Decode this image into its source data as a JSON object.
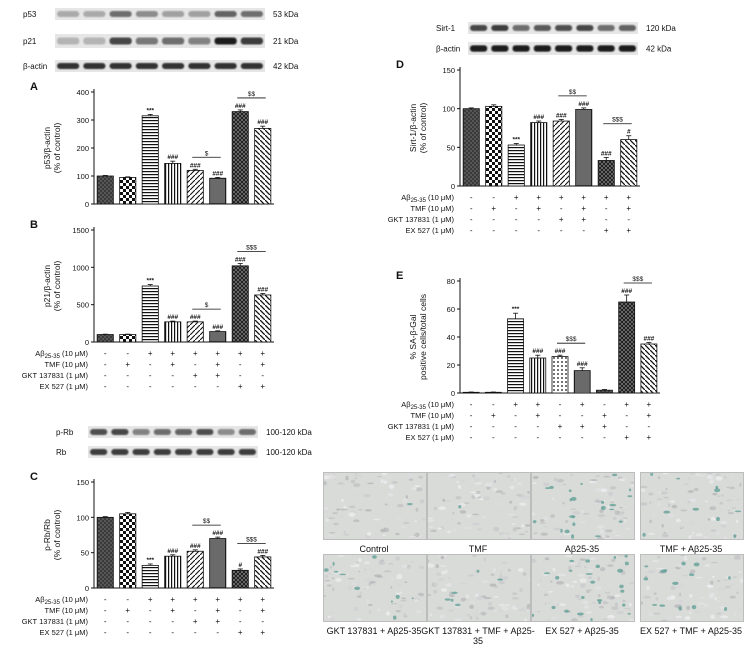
{
  "blots": {
    "top_left": [
      {
        "name": "p53",
        "size": "53 kDa"
      },
      {
        "name": "p21",
        "size": "21 kDa"
      },
      {
        "name": "β-actin",
        "size": "42 kDa"
      }
    ],
    "top_right": [
      {
        "name": "Sirt-1",
        "size": "120 kDa"
      },
      {
        "name": "β-actin",
        "size": "42 kDa"
      }
    ],
    "middle_left": [
      {
        "name": "p-Rb",
        "size": "100-120 kDa"
      },
      {
        "name": "Rb",
        "size": "100-120 kDa"
      }
    ]
  },
  "treatments": {
    "rows": [
      "Aβ25-35 (10 μM)",
      "TMF (10 μM)",
      "GKT 137831 (1 μM)",
      "EX 527 (1 μM)"
    ],
    "signs": [
      [
        "-",
        "-",
        "+",
        "+",
        "+",
        "+",
        "+",
        "+"
      ],
      [
        "-",
        "+",
        "-",
        "+",
        "-",
        "+",
        "-",
        "+"
      ],
      [
        "-",
        "-",
        "-",
        "-",
        "+",
        "+",
        "-",
        "-"
      ],
      [
        "-",
        "-",
        "-",
        "-",
        "-",
        "-",
        "+",
        "+"
      ]
    ]
  },
  "images": {
    "labels": [
      "Control",
      "TMF",
      "Aβ25-35",
      "TMF + Aβ25-35",
      "GKT 137831 + Aβ25-35",
      "GKT 137831 + TMF + Aβ25-35",
      "EX 527 + Aβ25-35",
      "EX 527 + TMF + Aβ25-35"
    ]
  },
  "chart_data": [
    {
      "panel": "A",
      "type": "bar",
      "ylabel": "p53/β-actin (% of control)",
      "ylim": [
        0,
        400
      ],
      "yticks": [
        0,
        100,
        200,
        300,
        400
      ],
      "values": [
        100,
        95,
        315,
        145,
        120,
        92,
        330,
        270
      ],
      "errors": [
        2,
        2,
        5,
        8,
        4,
        3,
        6,
        8
      ],
      "annotations": [
        "",
        "",
        "***",
        "###",
        "###",
        "###",
        "###",
        "###"
      ],
      "comparisons": [
        {
          "from": 4,
          "to": 5,
          "label": "$"
        },
        {
          "from": 6,
          "to": 7,
          "label": "$$"
        }
      ]
    },
    {
      "panel": "B",
      "type": "bar",
      "ylabel": "p21/β-actin (% of control)",
      "ylim": [
        0,
        1500
      ],
      "yticks": [
        0,
        500,
        1000,
        1500
      ],
      "values": [
        100,
        100,
        750,
        270,
        270,
        140,
        1020,
        630
      ],
      "errors": [
        5,
        5,
        20,
        10,
        10,
        10,
        30,
        20
      ],
      "annotations": [
        "",
        "",
        "***",
        "###",
        "###",
        "###",
        "###",
        "###"
      ],
      "comparisons": [
        {
          "from": 4,
          "to": 5,
          "label": "$"
        },
        {
          "from": 6,
          "to": 7,
          "label": "$$$"
        }
      ]
    },
    {
      "panel": "C",
      "type": "bar",
      "ylabel": "p-Rb/Rb (% of control)",
      "ylim": [
        0,
        150
      ],
      "yticks": [
        0,
        50,
        100,
        150
      ],
      "values": [
        100,
        105,
        32,
        45,
        52,
        70,
        25,
        44
      ],
      "errors": [
        1,
        2,
        2,
        2,
        2,
        2,
        2,
        2
      ],
      "annotations": [
        "",
        "",
        "***",
        "###",
        "###",
        "###",
        "#",
        "###"
      ],
      "comparisons": [
        {
          "from": 4,
          "to": 5,
          "label": "$$"
        },
        {
          "from": 6,
          "to": 7,
          "label": "$$$"
        }
      ]
    },
    {
      "panel": "D",
      "type": "bar",
      "ylabel": "Sirt-1/β-actin (% of control)",
      "ylim": [
        0,
        150
      ],
      "yticks": [
        0,
        50,
        100,
        150
      ],
      "values": [
        100,
        103,
        53,
        82,
        84,
        99,
        33,
        60
      ],
      "errors": [
        1,
        2,
        2,
        2,
        2,
        2,
        4,
        5
      ],
      "annotations": [
        "",
        "",
        "***",
        "###",
        "###",
        "###",
        "###",
        "#"
      ],
      "comparisons": [
        {
          "from": 4,
          "to": 5,
          "label": "$$"
        },
        {
          "from": 6,
          "to": 7,
          "label": "$$$"
        }
      ]
    },
    {
      "panel": "E",
      "type": "bar",
      "ylabel": "% SA-β-Gal positive cells/total cells",
      "ylim": [
        0,
        80
      ],
      "yticks": [
        0,
        20,
        40,
        60,
        80
      ],
      "values": [
        0.5,
        0.5,
        53,
        25,
        26,
        16,
        2,
        65,
        35
      ],
      "errors": [
        0.2,
        0.2,
        4,
        2,
        1,
        2,
        0.5,
        5,
        1
      ],
      "annotations": [
        "",
        "",
        "***",
        "###",
        "###",
        "###",
        "",
        "###",
        "###"
      ],
      "comparisons": [
        {
          "from": 4,
          "to": 5,
          "label": "$$$"
        },
        {
          "from": 7,
          "to": 8,
          "label": "$$$"
        }
      ],
      "signs": [
        [
          "-",
          "-",
          "+",
          "+",
          "-",
          "+",
          "-",
          "+",
          "+"
        ],
        [
          "-",
          "+",
          "-",
          "+",
          "-",
          "-",
          "+",
          "-",
          "+"
        ],
        [
          "-",
          "-",
          "-",
          "-",
          "+",
          "+",
          "+",
          "-",
          "-"
        ],
        [
          "-",
          "-",
          "-",
          "-",
          "-",
          "-",
          "-",
          "+",
          "+"
        ]
      ]
    }
  ]
}
